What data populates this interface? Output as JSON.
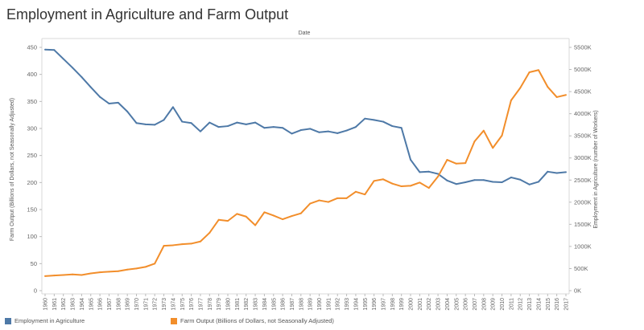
{
  "title": "Employment in Agriculture and Farm Output",
  "chart_data": {
    "type": "line",
    "title": "Employment in Agriculture and Farm Output",
    "xlabel": "Date",
    "ylabel_left": "Farm Output (Billions of Dollars, not Seasonally Adjusted)",
    "ylabel_right": "Employment in Agriculture (number of Workers)",
    "x": [
      1960,
      1961,
      1962,
      1963,
      1964,
      1965,
      1966,
      1967,
      1968,
      1969,
      1970,
      1971,
      1972,
      1973,
      1974,
      1975,
      1976,
      1977,
      1978,
      1979,
      1980,
      1981,
      1982,
      1983,
      1984,
      1985,
      1986,
      1987,
      1988,
      1989,
      1990,
      1991,
      1992,
      1993,
      1994,
      1995,
      1996,
      1997,
      1998,
      1999,
      2000,
      2001,
      2002,
      2003,
      2004,
      2005,
      2006,
      2007,
      2008,
      2009,
      2010,
      2011,
      2012,
      2013,
      2014,
      2015,
      2016,
      2017
    ],
    "ylim_left": [
      0,
      450
    ],
    "ylim_right": [
      0,
      5500000
    ],
    "yticks_left": [
      "0",
      "50",
      "100",
      "150",
      "200",
      "250",
      "300",
      "350",
      "400",
      "450"
    ],
    "yticks_right": [
      "0K",
      "500K",
      "1000K",
      "1500K",
      "2000K",
      "2500K",
      "3000K",
      "3500K",
      "4000K",
      "4500K",
      "5000K",
      "5500K"
    ],
    "grid": false,
    "legend_position": "bottom",
    "series": [
      {
        "name": "Employment in Agriculture",
        "axis": "right",
        "color": "#4e79a7",
        "values": [
          5450000,
          5440000,
          5240000,
          5040000,
          4830000,
          4600000,
          4380000,
          4230000,
          4250000,
          4050000,
          3790000,
          3760000,
          3750000,
          3860000,
          4150000,
          3820000,
          3790000,
          3600000,
          3800000,
          3700000,
          3720000,
          3800000,
          3760000,
          3800000,
          3680000,
          3700000,
          3680000,
          3550000,
          3630000,
          3660000,
          3580000,
          3600000,
          3560000,
          3620000,
          3700000,
          3890000,
          3860000,
          3820000,
          3720000,
          3680000,
          2960000,
          2680000,
          2690000,
          2640000,
          2490000,
          2410000,
          2450000,
          2500000,
          2500000,
          2460000,
          2450000,
          2560000,
          2510000,
          2400000,
          2460000,
          2690000,
          2660000,
          2680000
        ]
      },
      {
        "name": "Farm Output (Billions of Dollars, not Seasonally Adjusted)",
        "axis": "left",
        "color": "#f28e2b",
        "values": [
          27,
          28,
          29,
          30,
          29,
          32,
          34,
          35,
          36,
          39,
          41,
          44,
          50,
          83,
          84,
          86,
          87,
          91,
          107,
          131,
          129,
          142,
          137,
          121,
          145,
          139,
          132,
          138,
          143,
          161,
          167,
          164,
          171,
          171,
          183,
          178,
          203,
          206,
          198,
          193,
          194,
          200,
          190,
          211,
          242,
          235,
          236,
          276,
          296,
          264,
          287,
          352,
          375,
          404,
          408,
          377,
          358,
          362
        ]
      }
    ]
  }
}
